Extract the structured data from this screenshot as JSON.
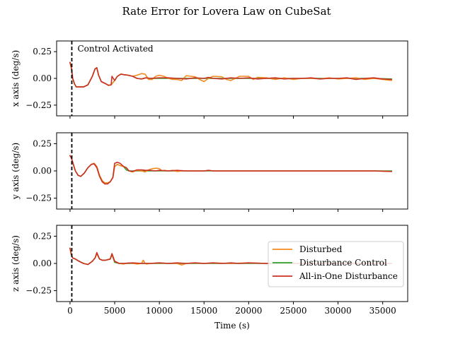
{
  "chart_data": {
    "type": "line",
    "title": "Rate Error for Lovera Law on CubeSat",
    "xlabel": "Time (s)",
    "xlim": [
      -1500,
      37800
    ],
    "xticks": [
      0,
      5000,
      10000,
      15000,
      20000,
      25000,
      30000,
      35000
    ],
    "xtick_labels": [
      "0",
      "5000",
      "10000",
      "15000",
      "20000",
      "25000",
      "30000",
      "35000"
    ],
    "ylim": [
      -0.35,
      0.35
    ],
    "yticks": [
      0.25,
      0.0,
      -0.25
    ],
    "ytick_labels": [
      "0.25",
      "0.00",
      "−0.25"
    ],
    "grid": false,
    "control_activation": {
      "x": 200,
      "label": "Control Activated",
      "style": "black dashed vertical line"
    },
    "legend": {
      "location": "lower-right of bottom panel",
      "entries": [
        {
          "name": "Disturbed",
          "color": "#f28a1e"
        },
        {
          "name": "Disturbance Control",
          "color": "#2ca02c"
        },
        {
          "name": "All-in-One Disturbance",
          "color": "#cb2f22"
        }
      ]
    },
    "panels": [
      {
        "ylabel": "x axis (deg/s)",
        "series": [
          {
            "name": "Disturbed",
            "color": "#f28a1e",
            "x": [
              0,
              150,
              300,
              500,
              700,
              1000,
              1500,
              2000,
              2500,
              2800,
              3000,
              3200,
              3500,
              4000,
              4300,
              4600,
              5000,
              5300,
              5700,
              6000,
              6500,
              7000,
              7500,
              8000,
              8400,
              8800,
              9200,
              9600,
              10000,
              10500,
              11000,
              11500,
              12000,
              12500,
              13000,
              13500,
              14000,
              14500,
              15000,
              15500,
              16000,
              17000,
              17500,
              18000,
              19000,
              20000,
              20500,
              21000,
              22000,
              23000,
              24000,
              25000,
              26000,
              27000,
              28000,
              29000,
              30000,
              31000,
              32000,
              33000,
              34000,
              35000,
              36000
            ],
            "y": [
              0.15,
              0.1,
              0.0,
              -0.05,
              -0.08,
              -0.08,
              -0.08,
              -0.06,
              0.02,
              0.09,
              0.1,
              0.03,
              -0.03,
              -0.05,
              -0.065,
              -0.06,
              -0.02,
              0.02,
              0.04,
              0.035,
              0.03,
              0.02,
              0.03,
              0.045,
              0.04,
              -0.01,
              -0.01,
              0.02,
              0.03,
              0.02,
              0.0,
              -0.01,
              -0.01,
              -0.02,
              0.025,
              0.02,
              0.015,
              -0.01,
              -0.03,
              0.0,
              0.02,
              0.015,
              -0.01,
              -0.02,
              0.02,
              0.02,
              -0.01,
              0.01,
              0.005,
              -0.01,
              0.005,
              -0.01,
              0.0,
              0.0,
              -0.005,
              0.005,
              -0.005,
              0.0,
              0.005,
              -0.01,
              0.0,
              -0.01,
              -0.02
            ]
          },
          {
            "name": "Disturbance Control",
            "color": "#2ca02c",
            "x": [
              0,
              150,
              300,
              500,
              700,
              1000,
              1500,
              2000,
              2500,
              2800,
              3000,
              3200,
              3500,
              4000,
              4300,
              4600,
              5000,
              5300,
              5700,
              6000,
              6500,
              7000,
              7500,
              8000,
              8500,
              9000,
              10000,
              12000,
              14000,
              16000,
              18000,
              20000,
              22000,
              24000,
              26000,
              28000,
              30000,
              32000,
              34000,
              36000
            ],
            "y": [
              0.15,
              0.1,
              0.0,
              -0.05,
              -0.08,
              -0.08,
              -0.08,
              -0.06,
              0.02,
              0.09,
              0.1,
              0.03,
              -0.03,
              -0.05,
              -0.065,
              -0.06,
              -0.02,
              0.02,
              0.04,
              0.035,
              0.03,
              0.02,
              0.0,
              -0.005,
              0.005,
              0.0,
              0.0,
              0.0,
              0.0,
              0.0,
              0.0,
              0.0,
              0.0,
              0.0,
              0.0,
              0.0,
              0.0,
              0.0,
              0.0,
              -0.005
            ]
          },
          {
            "name": "All-in-One Disturbance",
            "color": "#cb2f22",
            "x": [
              0,
              150,
              300,
              500,
              700,
              1000,
              1500,
              2000,
              2500,
              2800,
              3000,
              3200,
              3500,
              4000,
              4300,
              4600,
              4700,
              5000,
              5300,
              5700,
              6000,
              6500,
              7000,
              7500,
              8000,
              8500,
              9000,
              10000,
              11000,
              12000,
              13000,
              14000,
              15000,
              15500,
              16000,
              17000,
              18000,
              19000,
              20000,
              21000,
              22000,
              23000,
              24000,
              25000,
              26000,
              27000,
              28000,
              29000,
              30000,
              31000,
              32000,
              33000,
              34000,
              35000,
              36000
            ],
            "y": [
              0.15,
              0.1,
              0.0,
              -0.05,
              -0.08,
              -0.08,
              -0.08,
              -0.06,
              0.02,
              0.09,
              0.1,
              0.03,
              -0.03,
              -0.05,
              -0.065,
              -0.06,
              0.02,
              -0.02,
              0.02,
              0.04,
              0.035,
              0.03,
              0.02,
              0.0,
              -0.005,
              0.005,
              0.0,
              0.005,
              0.005,
              0.0,
              -0.005,
              0.005,
              0.0,
              0.01,
              0.0,
              -0.005,
              0.005,
              0.0,
              0.005,
              -0.005,
              0.0,
              0.005,
              -0.005,
              0.0,
              0.0,
              0.005,
              -0.005,
              0.0,
              0.0,
              0.005,
              -0.01,
              0.0,
              0.005,
              -0.005,
              -0.01
            ]
          }
        ]
      },
      {
        "ylabel": "y axis (deg/s)",
        "series": [
          {
            "name": "Disturbed",
            "color": "#f28a1e",
            "x": [
              0,
              150,
              300,
              600,
              900,
              1200,
              1600,
              2000,
              2400,
              2700,
              3000,
              3300,
              3600,
              3900,
              4200,
              4500,
              4800,
              5000,
              5300,
              5600,
              6000,
              6300,
              6600,
              7000,
              7300,
              7600,
              8000,
              8400,
              8800,
              9200,
              9700,
              10000,
              10300,
              10600,
              11000,
              11500,
              12000,
              12500,
              13000,
              14000,
              15000,
              15500,
              16000,
              18000,
              20000,
              22000,
              24000,
              26000,
              28000,
              30000,
              32000,
              34000,
              36000
            ],
            "y": [
              0.14,
              0.12,
              0.08,
              0.0,
              -0.04,
              -0.05,
              -0.02,
              0.03,
              0.06,
              0.07,
              0.04,
              -0.04,
              -0.09,
              -0.11,
              -0.11,
              -0.1,
              -0.06,
              0.04,
              0.06,
              0.05,
              0.04,
              0.03,
              0.0,
              -0.01,
              0.0,
              0.005,
              0.0,
              -0.01,
              0.01,
              0.02,
              0.025,
              0.02,
              0.0,
              0.005,
              0.0,
              0.005,
              -0.005,
              0.0,
              0.0,
              0.0,
              0.0,
              0.005,
              0.0,
              0.0,
              0.0,
              0.0,
              0.0,
              0.0,
              0.0,
              0.0,
              0.0,
              0.0,
              -0.005
            ]
          },
          {
            "name": "Disturbance Control",
            "color": "#2ca02c",
            "x": [
              0,
              150,
              300,
              600,
              900,
              1200,
              1600,
              2000,
              2400,
              2700,
              3000,
              3300,
              3600,
              3900,
              4200,
              4500,
              4800,
              5000,
              5300,
              5600,
              6000,
              6300,
              6600,
              7000,
              8000,
              10000,
              12000,
              14000,
              16000,
              18000,
              20000,
              22000,
              24000,
              26000,
              28000,
              30000,
              32000,
              34000,
              36000
            ],
            "y": [
              0.14,
              0.12,
              0.08,
              0.0,
              -0.04,
              -0.05,
              -0.02,
              0.03,
              0.06,
              0.07,
              0.04,
              -0.04,
              -0.09,
              -0.11,
              -0.11,
              -0.1,
              -0.06,
              0.04,
              0.06,
              0.05,
              0.04,
              0.01,
              0.0,
              0.0,
              0.0,
              0.0,
              0.0,
              0.0,
              0.0,
              0.0,
              0.0,
              0.0,
              0.0,
              0.0,
              0.0,
              0.0,
              0.0,
              0.0,
              0.0
            ]
          },
          {
            "name": "All-in-One Disturbance",
            "color": "#cb2f22",
            "x": [
              0,
              150,
              300,
              600,
              900,
              1200,
              1600,
              2000,
              2400,
              2700,
              3000,
              3300,
              3600,
              3900,
              4200,
              4500,
              4800,
              5000,
              5300,
              5600,
              6000,
              6300,
              6600,
              7000,
              7500,
              8000,
              8500,
              9000,
              9500,
              10000,
              11000,
              12000,
              13000,
              14000,
              15000,
              15500,
              16000,
              18000,
              20000,
              22000,
              24000,
              26000,
              28000,
              30000,
              32000,
              34000,
              36000
            ],
            "y": [
              0.14,
              0.12,
              0.08,
              0.0,
              -0.04,
              -0.05,
              -0.02,
              0.03,
              0.06,
              0.065,
              0.03,
              -0.05,
              -0.1,
              -0.12,
              -0.12,
              -0.1,
              -0.06,
              0.07,
              0.08,
              0.07,
              0.04,
              0.03,
              0.0,
              -0.005,
              0.01,
              0.01,
              0.005,
              0.005,
              0.0,
              0.005,
              0.0,
              0.005,
              0.0,
              0.0,
              0.0,
              0.005,
              0.0,
              0.0,
              0.0,
              0.0,
              0.0,
              0.0,
              0.0,
              0.0,
              0.0,
              0.0,
              -0.005
            ]
          }
        ]
      },
      {
        "ylabel": "z axis (deg/s)",
        "series": [
          {
            "name": "Disturbed",
            "color": "#f28a1e",
            "x": [
              0,
              150,
              300,
              600,
              1000,
              1500,
              2000,
              2500,
              2800,
              3000,
              3300,
              3600,
              4000,
              4500,
              4700,
              5000,
              5500,
              6000,
              6500,
              7000,
              7500,
              8000,
              8200,
              8400,
              8600,
              9000,
              10000,
              11000,
              12000,
              12500,
              13000,
              14000,
              15000,
              16000,
              18000,
              20000,
              22000,
              24000,
              26000,
              28000,
              30000,
              32000,
              34000,
              36000
            ],
            "y": [
              0.14,
              0.08,
              0.05,
              0.04,
              0.02,
              0.0,
              -0.01,
              0.02,
              0.05,
              0.09,
              0.04,
              0.03,
              0.03,
              0.04,
              0.08,
              0.02,
              0.0,
              -0.005,
              0.005,
              0.0,
              -0.005,
              0.0,
              0.03,
              0.0,
              -0.005,
              0.0,
              0.005,
              0.0,
              0.0,
              -0.015,
              0.0,
              0.005,
              0.0,
              0.005,
              0.0,
              0.005,
              0.0,
              0.0,
              0.0,
              0.0,
              0.0,
              0.0,
              0.0,
              0.0
            ]
          },
          {
            "name": "Disturbance Control",
            "color": "#2ca02c",
            "x": [
              0,
              150,
              300,
              600,
              1000,
              1500,
              2000,
              2500,
              2800,
              3000,
              3300,
              3600,
              4000,
              4500,
              4700,
              5000,
              5500,
              6000,
              7000,
              8000,
              10000,
              12000,
              14000,
              16000,
              18000,
              20000,
              22000,
              24000,
              26000,
              28000,
              30000,
              32000,
              34000,
              36000
            ],
            "y": [
              0.14,
              0.08,
              0.05,
              0.04,
              0.02,
              0.0,
              -0.01,
              0.02,
              0.05,
              0.09,
              0.04,
              0.03,
              0.03,
              0.04,
              0.08,
              0.01,
              0.0,
              0.0,
              0.0,
              0.0,
              0.0,
              0.0,
              0.0,
              0.0,
              0.0,
              0.0,
              0.0,
              0.0,
              0.0,
              0.0,
              0.0,
              0.0,
              0.0,
              0.0
            ]
          },
          {
            "name": "All-in-One Disturbance",
            "color": "#cb2f22",
            "x": [
              0,
              150,
              300,
              600,
              1000,
              1500,
              2000,
              2500,
              2800,
              3000,
              3300,
              3600,
              4000,
              4500,
              4700,
              5000,
              5500,
              6000,
              7000,
              8000,
              9000,
              10000,
              11000,
              12000,
              13000,
              14000,
              15000,
              16000,
              17000,
              18000,
              19000,
              20000,
              22000,
              24000,
              26000,
              28000,
              30000,
              32000,
              34000,
              36000
            ],
            "y": [
              0.14,
              0.08,
              0.05,
              0.04,
              0.02,
              0.0,
              -0.01,
              0.02,
              0.05,
              0.1,
              0.04,
              0.03,
              0.03,
              0.04,
              0.09,
              0.02,
              0.0,
              0.0,
              0.005,
              0.0,
              0.0,
              0.005,
              0.0,
              0.005,
              0.0,
              0.005,
              0.0,
              0.005,
              0.0,
              0.005,
              0.0,
              0.005,
              0.0,
              0.005,
              0.0,
              0.0,
              0.0,
              0.0,
              0.0,
              0.0
            ]
          }
        ]
      }
    ]
  }
}
